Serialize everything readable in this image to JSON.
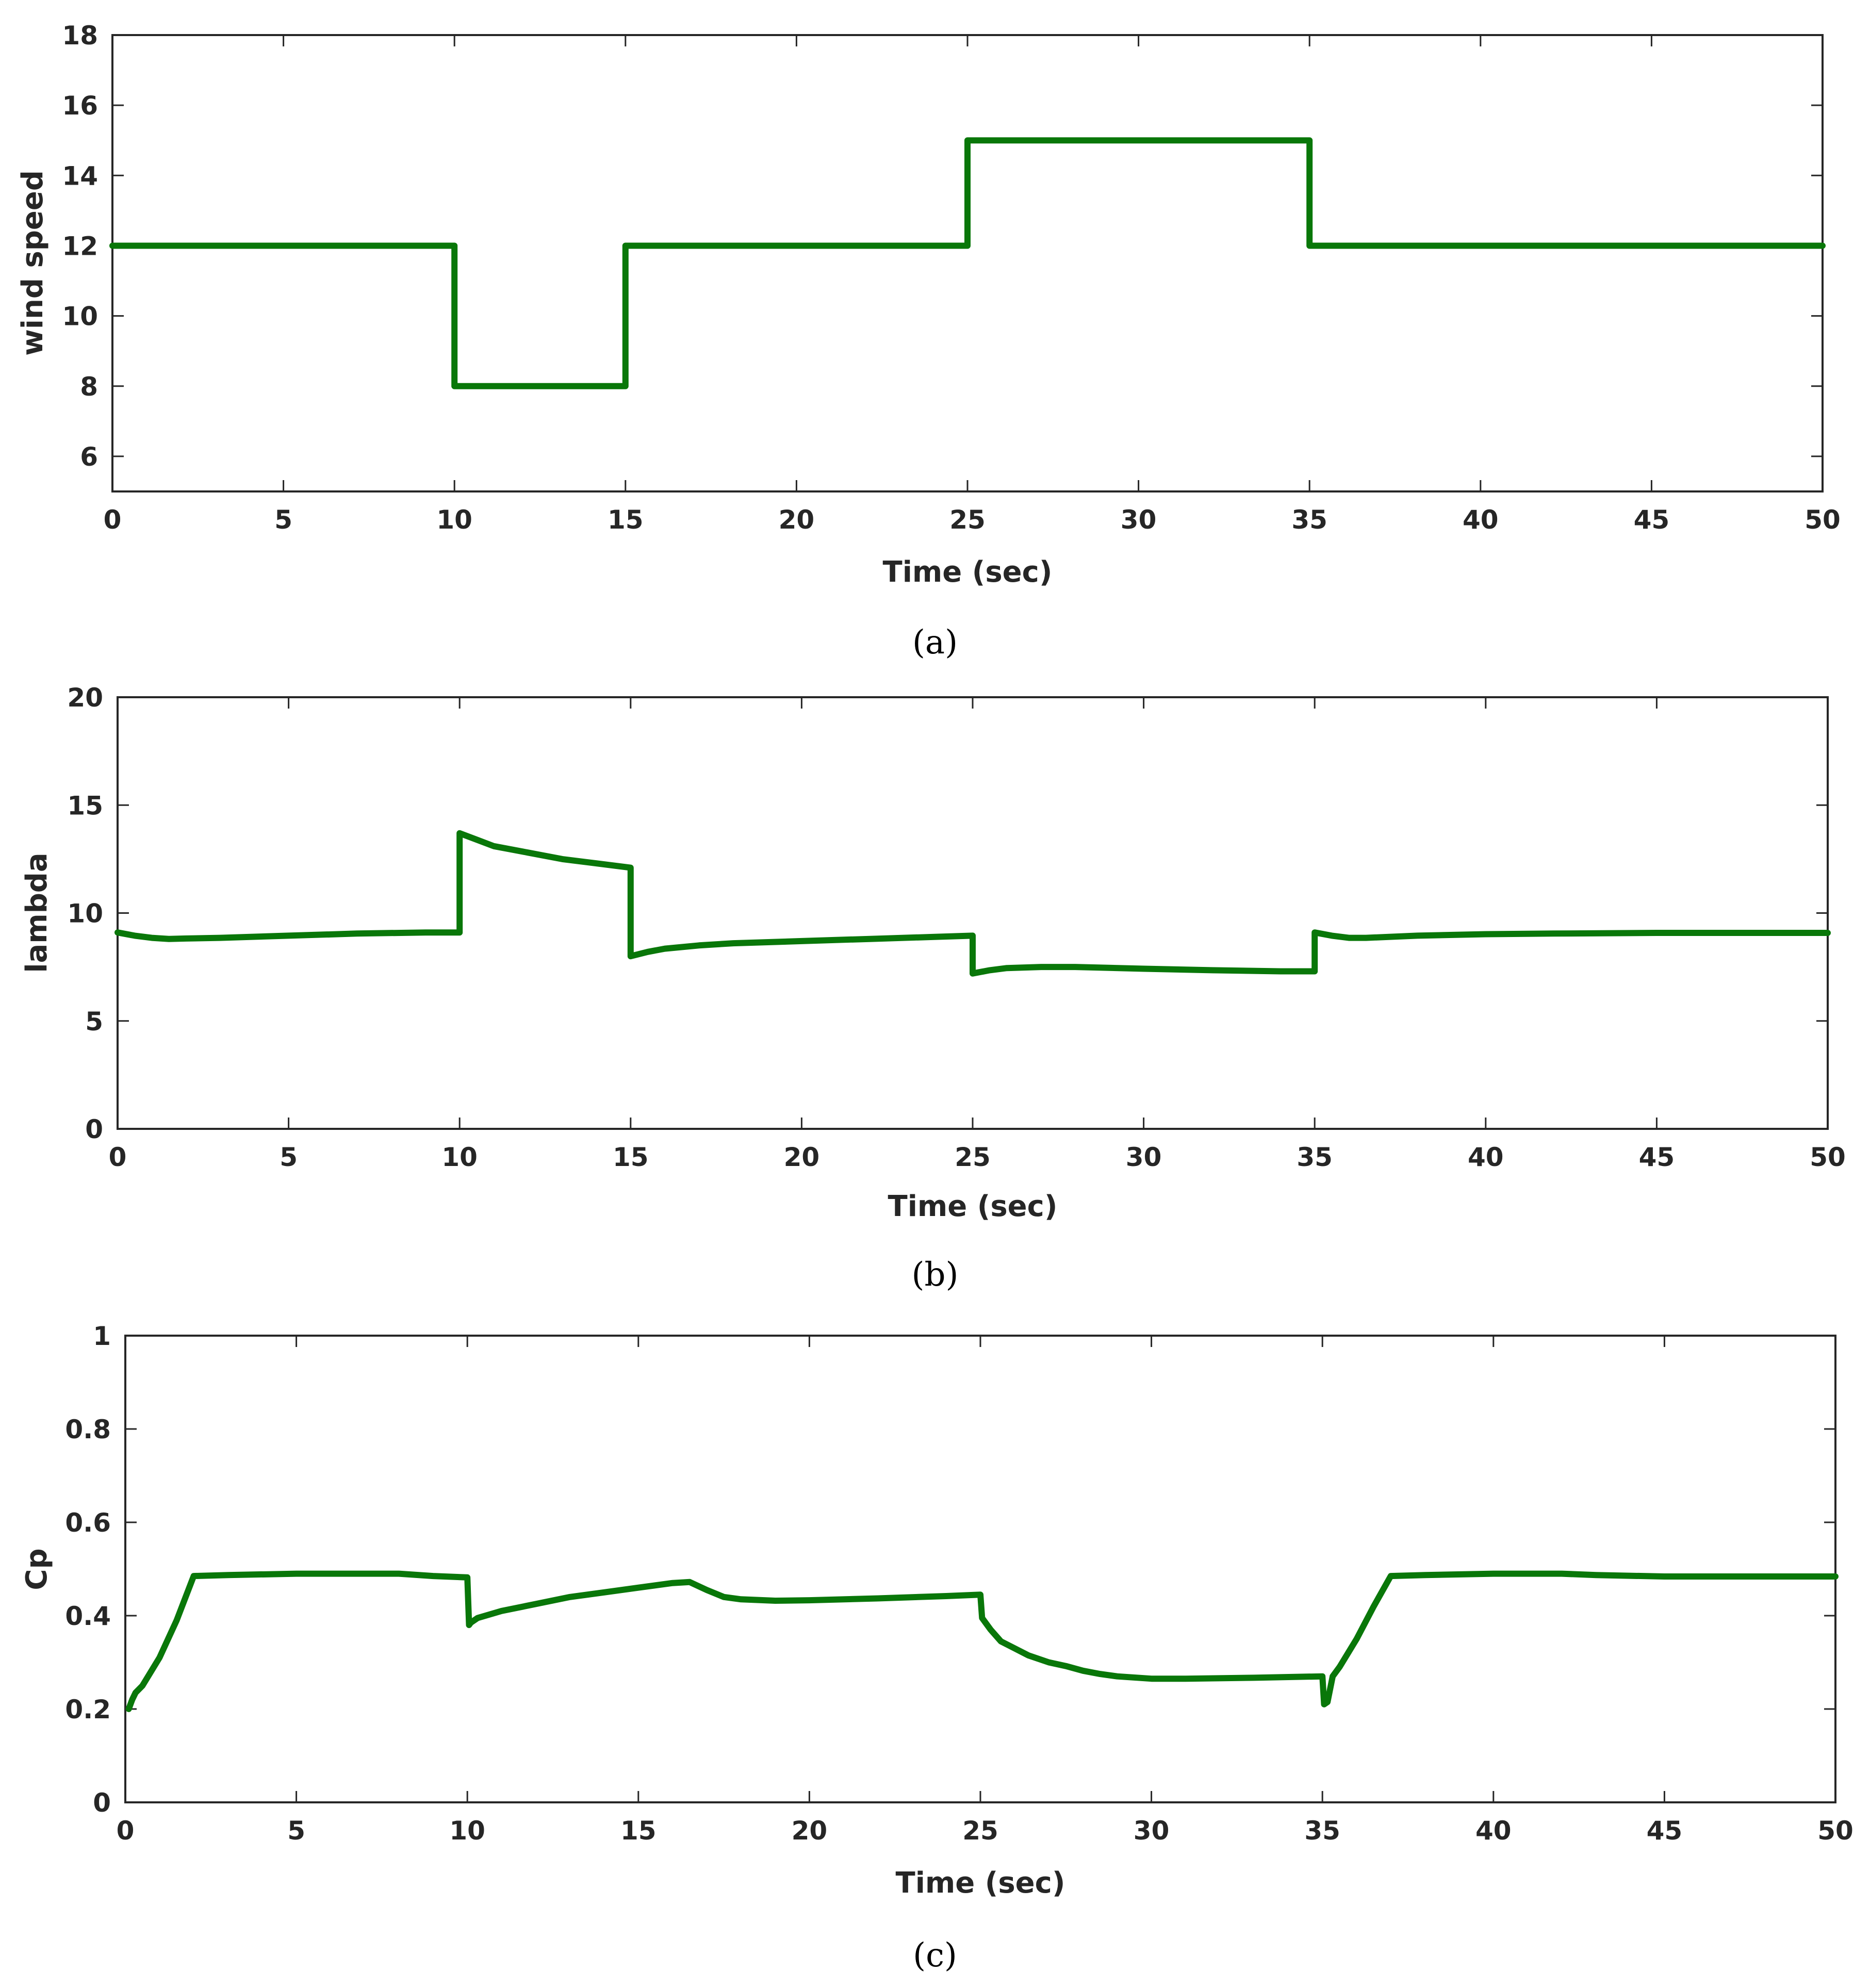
{
  "colors": {
    "series": "#097709",
    "axis": "#262626",
    "background": "#ffffff"
  },
  "chart_data": [
    {
      "type": "line",
      "caption": "(a)",
      "xlabel": "Time (sec)",
      "ylabel": "wind speed",
      "xlim": [
        0,
        50
      ],
      "ylim": [
        5,
        18
      ],
      "xticks": [
        0,
        5,
        10,
        15,
        20,
        25,
        30,
        35,
        40,
        45,
        50
      ],
      "yticks": [
        6,
        8,
        10,
        12,
        14,
        16,
        18
      ],
      "series": [
        {
          "name": "wind speed",
          "x": [
            0,
            10,
            10,
            15,
            15,
            25,
            25,
            35,
            35,
            50
          ],
          "y": [
            12,
            12,
            8,
            8,
            12,
            12,
            15,
            15,
            12,
            12
          ]
        }
      ]
    },
    {
      "type": "line",
      "caption": "(b)",
      "xlabel": "Time (sec)",
      "ylabel": "lambda",
      "xlim": [
        0,
        50
      ],
      "ylim": [
        0,
        20
      ],
      "xticks": [
        0,
        5,
        10,
        15,
        20,
        25,
        30,
        35,
        40,
        45,
        50
      ],
      "yticks": [
        0,
        5,
        10,
        15,
        20
      ],
      "series": [
        {
          "name": "lambda",
          "x": [
            0,
            0.5,
            1,
            1.5,
            2,
            3,
            5,
            7,
            9,
            10,
            10,
            10.5,
            11,
            12,
            13,
            14,
            15,
            15,
            15.5,
            16,
            17,
            18,
            20,
            22,
            24,
            25,
            25,
            25.5,
            26,
            27,
            28,
            30,
            32,
            34,
            35,
            35,
            35.5,
            36,
            36.5,
            38,
            40,
            42,
            45,
            50
          ],
          "y": [
            9.1,
            8.95,
            8.85,
            8.8,
            8.82,
            8.85,
            8.95,
            9.05,
            9.1,
            9.1,
            13.7,
            13.4,
            13.1,
            12.8,
            12.5,
            12.3,
            12.1,
            8.0,
            8.2,
            8.35,
            8.5,
            8.6,
            8.7,
            8.8,
            8.9,
            8.95,
            7.2,
            7.35,
            7.45,
            7.5,
            7.5,
            7.42,
            7.35,
            7.3,
            7.3,
            9.1,
            8.95,
            8.85,
            8.85,
            8.95,
            9.02,
            9.05,
            9.08,
            9.08
          ]
        }
      ]
    },
    {
      "type": "line",
      "caption": "(c)",
      "xlabel": "Time (sec)",
      "ylabel": "Cp",
      "xlim": [
        0,
        50
      ],
      "ylim": [
        0,
        1
      ],
      "xticks": [
        0,
        5,
        10,
        15,
        20,
        25,
        30,
        35,
        40,
        45,
        50
      ],
      "yticks": [
        0,
        0.2,
        0.4,
        0.6,
        0.8,
        1
      ],
      "ytick_labels": [
        "0",
        "0.2",
        "0.4",
        "0.6",
        "0.8",
        "1"
      ],
      "series": [
        {
          "name": "Cp",
          "x": [
            0.1,
            0.2,
            0.3,
            0.5,
            1,
            1.5,
            2,
            3,
            5,
            8,
            9,
            10,
            10.05,
            10.1,
            10.3,
            11,
            12,
            13,
            14,
            15,
            15.5,
            16,
            16.5,
            17,
            17.5,
            18,
            19,
            20,
            22,
            24,
            25,
            25.05,
            25.3,
            25.6,
            26,
            26.4,
            27,
            27.5,
            28,
            28.5,
            29,
            30,
            31,
            33,
            35,
            35.05,
            35.15,
            35.3,
            35.5,
            36,
            36.5,
            37,
            38,
            40,
            42,
            43,
            45,
            50
          ],
          "y": [
            0.2,
            0.22,
            0.235,
            0.25,
            0.31,
            0.39,
            0.485,
            0.487,
            0.49,
            0.49,
            0.485,
            0.482,
            0.38,
            0.385,
            0.395,
            0.41,
            0.425,
            0.44,
            0.45,
            0.46,
            0.465,
            0.47,
            0.472,
            0.455,
            0.44,
            0.435,
            0.432,
            0.433,
            0.437,
            0.442,
            0.445,
            0.395,
            0.37,
            0.345,
            0.33,
            0.315,
            0.3,
            0.292,
            0.282,
            0.275,
            0.27,
            0.265,
            0.265,
            0.267,
            0.27,
            0.21,
            0.215,
            0.27,
            0.29,
            0.35,
            0.42,
            0.485,
            0.487,
            0.49,
            0.49,
            0.487,
            0.484,
            0.484
          ]
        }
      ]
    }
  ]
}
